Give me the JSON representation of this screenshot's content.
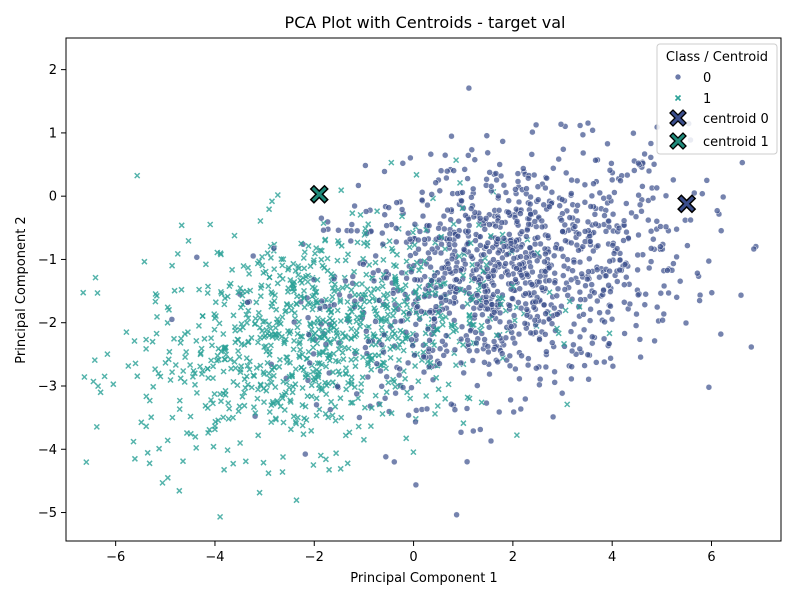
{
  "chart_data": {
    "type": "scatter",
    "title": "PCA Plot with Centroids - target val",
    "xlabel": "Principal Component 1",
    "ylabel": "Principal Component 2",
    "xlim": [
      -7.0,
      7.4
    ],
    "ylim": [
      -5.45,
      2.5
    ],
    "xticks": [
      -6,
      -4,
      -2,
      0,
      2,
      4,
      6
    ],
    "yticks": [
      -5,
      -4,
      -3,
      -2,
      -1,
      0,
      1,
      2
    ],
    "grid": false,
    "legend": {
      "title": "Class / Centroid",
      "placement": "top-right",
      "entries": [
        {
          "label": "0",
          "marker": "circle",
          "color": "#3b4e8c"
        },
        {
          "label": "1",
          "marker": "x",
          "color": "#2aa197"
        },
        {
          "label": "centroid 0",
          "marker": "X",
          "color": "#3b4e8c"
        },
        {
          "label": "centroid 1",
          "marker": "X",
          "color": "#1f8a7a"
        }
      ]
    },
    "series": [
      {
        "name": "0",
        "marker": "circle",
        "color": "#3b4e8c",
        "count": 1200,
        "distribution": {
          "mean": [
            1.9,
            -1.2
          ],
          "sd": [
            1.8,
            0.95
          ],
          "corr": 0.25
        }
      },
      {
        "name": "1",
        "marker": "x",
        "color": "#2aa197",
        "count": 1000,
        "distribution": {
          "mean": [
            -2.0,
            -2.2
          ],
          "sd": [
            1.8,
            0.9
          ],
          "corr": 0.3
        }
      }
    ],
    "centroids": [
      {
        "name": "centroid 0",
        "x": 5.5,
        "y": -0.12,
        "color": "#3b4e8c"
      },
      {
        "name": "centroid 1",
        "x": -1.9,
        "y": 0.03,
        "color": "#1f8a7a"
      }
    ]
  }
}
